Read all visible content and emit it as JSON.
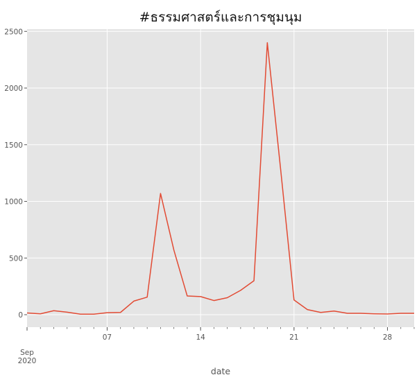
{
  "chart_data": {
    "type": "line",
    "title": "#ธรรมศาสตร์และการชุมนุม",
    "xlabel": "date",
    "ylabel": "",
    "x_start": "2020-09-01",
    "x_end": "2020-09-30",
    "xlim": [
      "2020-09-01",
      "2020-09-30"
    ],
    "ylim": [
      -110,
      2520
    ],
    "x_ticks": [
      "07",
      "14",
      "21",
      "28"
    ],
    "x_tick_dates": [
      "2020-09-07",
      "2020-09-14",
      "2020-09-21",
      "2020-09-28"
    ],
    "x_major_label": [
      "Sep",
      "2020"
    ],
    "y_ticks": [
      0,
      500,
      1000,
      1500,
      2000,
      2500
    ],
    "grid": true,
    "background": "#e5e5e5",
    "line_color": "#e24a33",
    "series": [
      {
        "x": [
          "2020-09-01",
          "2020-09-02",
          "2020-09-03",
          "2020-09-04",
          "2020-09-05",
          "2020-09-06",
          "2020-09-07",
          "2020-09-08",
          "2020-09-09",
          "2020-09-10",
          "2020-09-11",
          "2020-09-12",
          "2020-09-13",
          "2020-09-14",
          "2020-09-15",
          "2020-09-16",
          "2020-09-17",
          "2020-09-18",
          "2020-09-19",
          "2020-09-20",
          "2020-09-21",
          "2020-09-22",
          "2020-09-23",
          "2020-09-24",
          "2020-09-25",
          "2020-09-26",
          "2020-09-27",
          "2020-09-28",
          "2020-09-29",
          "2020-09-30"
        ],
        "values": [
          15,
          8,
          35,
          22,
          5,
          5,
          18,
          20,
          120,
          155,
          1070,
          570,
          165,
          160,
          125,
          150,
          215,
          300,
          2400,
          1280,
          130,
          45,
          20,
          32,
          12,
          12,
          8,
          6,
          12,
          12
        ]
      }
    ]
  }
}
